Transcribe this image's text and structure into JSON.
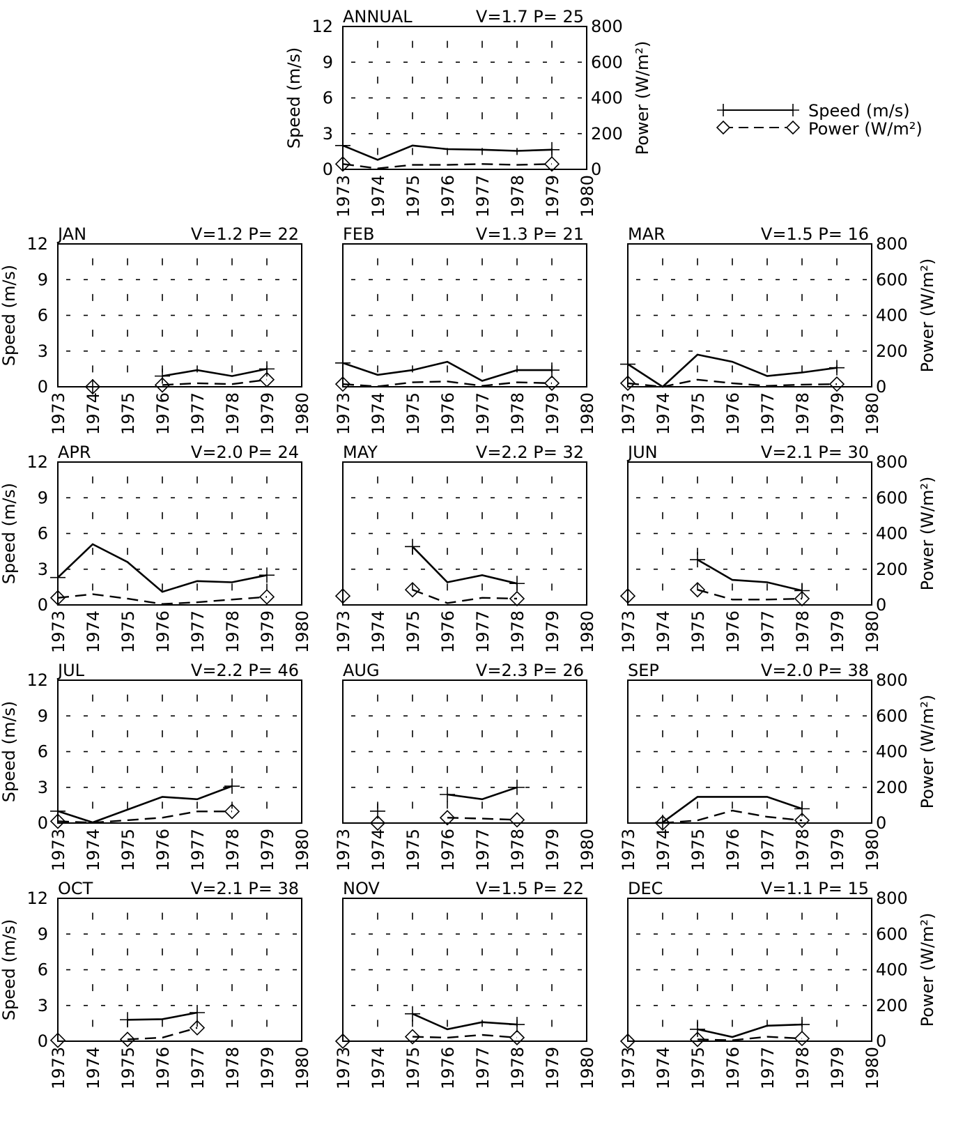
{
  "chart_data": {
    "type": "line",
    "legend": {
      "position": "top-right",
      "entries": [
        {
          "label": "Speed (m/s)",
          "style": "solid",
          "marker": "plus"
        },
        {
          "label": "Power (W/m²)",
          "style": "dashed",
          "marker": "diamond"
        }
      ]
    },
    "x_ticks": [
      "1973",
      "1974",
      "1975",
      "1976",
      "1977",
      "1978",
      "1979",
      "1980"
    ],
    "xlim": [
      1973,
      1980
    ],
    "speed_axis": {
      "label": "Speed (m/s)",
      "ticks": [
        "0",
        "3",
        "6",
        "9",
        "12"
      ],
      "ylim": [
        0,
        12
      ]
    },
    "power_axis": {
      "label": "Power (W/m²)",
      "ticks": [
        "0",
        "200",
        "400",
        "600",
        "800"
      ],
      "ylim": [
        0,
        800
      ]
    },
    "grid": "dashed tick marks",
    "panels": [
      {
        "title": "ANNUAL",
        "stats": "V=1.7 P= 25",
        "speed": [
          [
            1973,
            2.0
          ],
          [
            1974,
            0.8
          ],
          [
            1975,
            2.0
          ],
          [
            1976,
            1.7
          ],
          [
            1977,
            1.65
          ],
          [
            1978,
            1.55
          ],
          [
            1979,
            1.65
          ]
        ],
        "power": [
          [
            1973,
            30
          ],
          [
            1974,
            5
          ],
          [
            1975,
            25
          ],
          [
            1976,
            25
          ],
          [
            1977,
            30
          ],
          [
            1978,
            25
          ],
          [
            1979,
            30
          ]
        ]
      },
      {
        "title": "JAN",
        "stats": "V=1.2 P= 22",
        "speed": [
          [
            1976,
            0.9
          ],
          [
            1977,
            1.4
          ],
          [
            1978,
            0.9
          ],
          [
            1979,
            1.5
          ]
        ],
        "power": [
          [
            1976,
            10
          ],
          [
            1977,
            20
          ],
          [
            1978,
            15
          ],
          [
            1979,
            40
          ]
        ],
        "isolated": [
          {
            "year": 1974,
            "speed": 0,
            "power": 0
          }
        ]
      },
      {
        "title": "FEB",
        "stats": "V=1.3 P= 21",
        "speed": [
          [
            1973,
            2.0
          ],
          [
            1974,
            1.0
          ],
          [
            1975,
            1.4
          ],
          [
            1976,
            2.1
          ],
          [
            1977,
            0.5
          ],
          [
            1978,
            1.4
          ],
          [
            1979,
            1.4
          ]
        ],
        "power": [
          [
            1973,
            15
          ],
          [
            1974,
            2
          ],
          [
            1975,
            25
          ],
          [
            1976,
            30
          ],
          [
            1977,
            5
          ],
          [
            1978,
            25
          ],
          [
            1979,
            20
          ]
        ]
      },
      {
        "title": "MAR",
        "stats": "V=1.5 P= 16",
        "speed": [
          [
            1973,
            1.9
          ],
          [
            1974,
            0.0
          ],
          [
            1975,
            2.7
          ],
          [
            1976,
            2.1
          ],
          [
            1977,
            0.9
          ],
          [
            1978,
            1.2
          ],
          [
            1979,
            1.6
          ]
        ],
        "power": [
          [
            1973,
            20
          ],
          [
            1974,
            0
          ],
          [
            1975,
            40
          ],
          [
            1976,
            20
          ],
          [
            1977,
            5
          ],
          [
            1978,
            12
          ],
          [
            1979,
            15
          ]
        ]
      },
      {
        "title": "APR",
        "stats": "V=2.0 P= 24",
        "speed": [
          [
            1973,
            2.3
          ],
          [
            1974,
            5.1
          ],
          [
            1975,
            3.6
          ],
          [
            1976,
            1.1
          ],
          [
            1977,
            2.0
          ],
          [
            1978,
            1.9
          ],
          [
            1979,
            2.5
          ]
        ],
        "power": [
          [
            1973,
            40
          ],
          [
            1974,
            60
          ],
          [
            1975,
            35
          ],
          [
            1976,
            5
          ],
          [
            1977,
            15
          ],
          [
            1978,
            30
          ],
          [
            1979,
            45
          ]
        ]
      },
      {
        "title": "MAY",
        "stats": "V=2.2 P= 32",
        "speed": [
          [
            1975,
            4.9
          ],
          [
            1976,
            1.9
          ],
          [
            1977,
            2.5
          ],
          [
            1978,
            1.8
          ]
        ],
        "power": [
          [
            1975,
            85
          ],
          [
            1976,
            10
          ],
          [
            1977,
            40
          ],
          [
            1978,
            35
          ]
        ],
        "isolated": [
          {
            "year": 1973,
            "power": 50
          }
        ]
      },
      {
        "title": "JUN",
        "stats": "V=2.1 P= 30",
        "speed": [
          [
            1975,
            3.8
          ],
          [
            1976,
            2.1
          ],
          [
            1977,
            1.9
          ],
          [
            1978,
            1.2
          ]
        ],
        "power": [
          [
            1975,
            85
          ],
          [
            1976,
            30
          ],
          [
            1977,
            30
          ],
          [
            1978,
            35
          ]
        ],
        "isolated": [
          {
            "year": 1973,
            "power": 50
          }
        ]
      },
      {
        "title": "JUL",
        "stats": "V=2.2 P= 46",
        "speed": [
          [
            1973,
            1.0
          ],
          [
            1974,
            0.05
          ],
          [
            1976,
            2.2
          ],
          [
            1977,
            2.0
          ],
          [
            1978,
            3.1
          ]
        ],
        "power": [
          [
            1973,
            10
          ],
          [
            1974,
            2
          ],
          [
            1976,
            30
          ],
          [
            1977,
            65
          ],
          [
            1978,
            65
          ]
        ]
      },
      {
        "title": "AUG",
        "stats": "V=2.3 P= 26",
        "speed": [
          [
            1976,
            2.4
          ],
          [
            1977,
            2.0
          ],
          [
            1978,
            3.0
          ]
        ],
        "power": [
          [
            1976,
            30
          ],
          [
            1977,
            25
          ],
          [
            1978,
            18
          ]
        ],
        "isolated": [
          {
            "year": 1974,
            "speed": 1.0,
            "power": 0
          }
        ]
      },
      {
        "title": "SEP",
        "stats": "V=2.0 P= 38",
        "speed": [
          [
            1974,
            0.05
          ],
          [
            1975,
            2.2
          ],
          [
            1976,
            2.2
          ],
          [
            1977,
            2.2
          ],
          [
            1978,
            1.2
          ]
        ],
        "power": [
          [
            1974,
            0
          ],
          [
            1975,
            15
          ],
          [
            1976,
            70
          ],
          [
            1977,
            35
          ],
          [
            1978,
            15
          ]
        ]
      },
      {
        "title": "OCT",
        "stats": "V=2.1 P= 38",
        "speed": [
          [
            1975,
            1.8
          ],
          [
            1976,
            1.85
          ],
          [
            1977,
            2.4
          ]
        ],
        "power": [
          [
            1975,
            10
          ],
          [
            1976,
            20
          ],
          [
            1977,
            75
          ]
        ],
        "isolated": [
          {
            "year": 1973,
            "power": 5
          }
        ]
      },
      {
        "title": "NOV",
        "stats": "V=1.5 P= 22",
        "speed": [
          [
            1975,
            2.3
          ],
          [
            1976,
            1.0
          ],
          [
            1977,
            1.6
          ],
          [
            1978,
            1.4
          ]
        ],
        "power": [
          [
            1975,
            25
          ],
          [
            1976,
            20
          ],
          [
            1977,
            35
          ],
          [
            1978,
            20
          ]
        ],
        "isolated": [
          {
            "year": 1973,
            "power": 0
          }
        ]
      },
      {
        "title": "DEC",
        "stats": "V=1.1 P= 15",
        "speed": [
          [
            1975,
            1.0
          ],
          [
            1976,
            0.35
          ],
          [
            1977,
            1.3
          ],
          [
            1978,
            1.4
          ]
        ],
        "power": [
          [
            1975,
            10
          ],
          [
            1976,
            5
          ],
          [
            1977,
            25
          ],
          [
            1978,
            15
          ]
        ],
        "isolated": [
          {
            "year": 1973,
            "power": 0
          }
        ]
      }
    ]
  }
}
